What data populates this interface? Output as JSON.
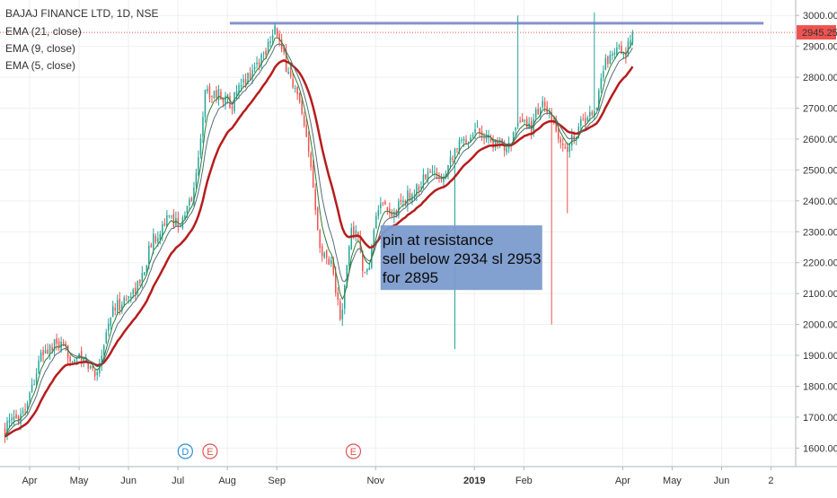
{
  "chart_data": {
    "type": "candlestick",
    "title": "BAJAJ FINANCE LTD, 1D, NSE",
    "indicators": [
      "EMA (21, close)",
      "EMA (9, close)",
      "EMA (5, close)"
    ],
    "last_price": "2945.25",
    "ylim": [
      1540,
      3050
    ],
    "y_ticks": [
      "3000.00",
      "2900.00",
      "2800.00",
      "2700.00",
      "2600.00",
      "2500.00",
      "2400.00",
      "2300.00",
      "2200.00",
      "2100.00",
      "2000.00",
      "1900.00",
      "1800.00",
      "1700.00",
      "1600.00"
    ],
    "x_ticks": [
      {
        "label": "Apr",
        "x": 0.5,
        "bold": false
      },
      {
        "label": "May",
        "x": 1.5,
        "bold": false
      },
      {
        "label": "Jun",
        "x": 2.5,
        "bold": false
      },
      {
        "label": "Jul",
        "x": 3.5,
        "bold": false
      },
      {
        "label": "Aug",
        "x": 4.5,
        "bold": false
      },
      {
        "label": "Sep",
        "x": 5.5,
        "bold": false
      },
      {
        "label": "Nov",
        "x": 7.5,
        "bold": false
      },
      {
        "label": "2019",
        "x": 9.5,
        "bold": true
      },
      {
        "label": "Feb",
        "x": 10.5,
        "bold": false
      },
      {
        "label": "Apr",
        "x": 12.5,
        "bold": false
      },
      {
        "label": "May",
        "x": 13.5,
        "bold": false
      },
      {
        "label": "Jun",
        "x": 14.5,
        "bold": false
      },
      {
        "label": "2",
        "x": 15.5,
        "bold": false
      }
    ],
    "xlim": [
      -0.1,
      16.0
    ],
    "price_path": [
      [
        0.0,
        1660
      ],
      [
        0.4,
        1730
      ],
      [
        0.75,
        1905
      ],
      [
        1.05,
        1935
      ],
      [
        1.3,
        1900
      ],
      [
        1.6,
        1880
      ],
      [
        1.85,
        1840
      ],
      [
        2.15,
        2040
      ],
      [
        2.5,
        2090
      ],
      [
        2.75,
        2140
      ],
      [
        2.95,
        2260
      ],
      [
        3.25,
        2340
      ],
      [
        3.6,
        2330
      ],
      [
        3.85,
        2450
      ],
      [
        4.05,
        2750
      ],
      [
        4.25,
        2750
      ],
      [
        4.6,
        2720
      ],
      [
        4.9,
        2800
      ],
      [
        5.25,
        2880
      ],
      [
        5.45,
        2970
      ],
      [
        5.6,
        2880
      ],
      [
        5.95,
        2720
      ],
      [
        6.2,
        2500
      ],
      [
        6.4,
        2230
      ],
      [
        6.6,
        2210
      ],
      [
        6.8,
        2000
      ],
      [
        7.0,
        2310
      ],
      [
        7.15,
        2280
      ],
      [
        7.3,
        2130
      ],
      [
        7.55,
        2380
      ],
      [
        7.85,
        2350
      ],
      [
        8.05,
        2400
      ],
      [
        8.3,
        2430
      ],
      [
        8.55,
        2490
      ],
      [
        8.85,
        2480
      ],
      [
        9.1,
        2570
      ],
      [
        9.35,
        2600
      ],
      [
        9.55,
        2640
      ],
      [
        9.75,
        2610
      ],
      [
        10.0,
        2570
      ],
      [
        10.25,
        2600
      ],
      [
        10.45,
        2650
      ],
      [
        10.65,
        2640
      ],
      [
        10.85,
        2720
      ],
      [
        11.1,
        2640
      ],
      [
        11.35,
        2560
      ],
      [
        11.6,
        2640
      ],
      [
        11.95,
        2700
      ],
      [
        12.15,
        2850
      ],
      [
        12.35,
        2900
      ],
      [
        12.55,
        2860
      ],
      [
        12.7,
        2945
      ]
    ],
    "candles_per_unit": 22,
    "ema_periods": [
      5,
      9,
      21
    ],
    "resistance_level": 2975,
    "resistance_span": [
      4.55,
      15.35
    ],
    "annotation": {
      "lines": [
        "pin at resistance",
        "sell below 2934 sl 2953",
        "for 2895"
      ],
      "anchor": [
        7.6,
        2280
      ]
    },
    "events": [
      {
        "label": "D",
        "x": 3.65,
        "color": "#2a8fd6"
      },
      {
        "label": "E",
        "x": 4.15,
        "color": "#e0514f"
      },
      {
        "label": "E",
        "x": 7.05,
        "color": "#e0514f"
      }
    ],
    "colors": {
      "up": "#26a69a",
      "down": "#ef5350",
      "ema21": "#b71c1c",
      "ema9": "#546e7a",
      "ema5": "#2e7d32",
      "resistance": "#7986cb",
      "price_tag": "#ef5350",
      "annotation_bg": "#7b9bcd"
    },
    "grid": true
  }
}
